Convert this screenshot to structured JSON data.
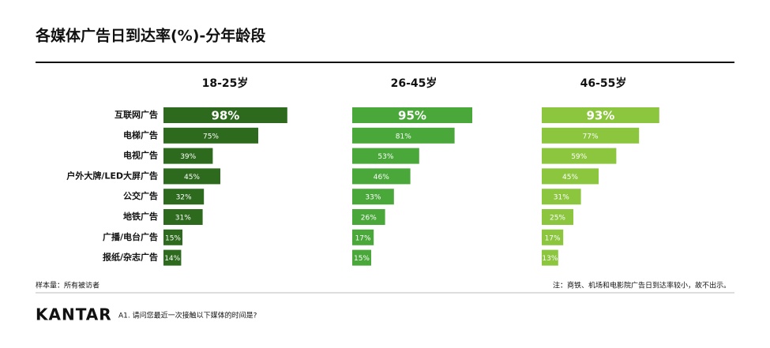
{
  "title": "各媒体广告日到达率(%)-分年龄段",
  "chart_data": [
    {
      "type": "bar",
      "orientation": "horizontal",
      "title": "18-25岁",
      "categories": [
        "互联网广告",
        "电梯广告",
        "电视广告",
        "户外大牌/LED大屏广告",
        "公交广告",
        "地铁广告",
        "广播/电台广告",
        "报纸/杂志广告"
      ],
      "values": [
        98,
        75,
        39,
        45,
        32,
        31,
        15,
        14
      ],
      "value_labels": [
        "98%",
        "75%",
        "39%",
        "45%",
        "32%",
        "31%",
        "15%",
        "14%"
      ],
      "color": "#2d6a1e",
      "xlim": [
        0,
        100
      ]
    },
    {
      "type": "bar",
      "orientation": "horizontal",
      "title": "26-45岁",
      "values": [
        95,
        81,
        53,
        46,
        33,
        26,
        17,
        15
      ],
      "value_labels": [
        "95%",
        "81%",
        "53%",
        "46%",
        "33%",
        "26%",
        "17%",
        "15%"
      ],
      "color": "#4aa83a",
      "xlim": [
        0,
        100
      ]
    },
    {
      "type": "bar",
      "orientation": "horizontal",
      "title": "46-55岁",
      "values": [
        93,
        77,
        59,
        45,
        31,
        25,
        17,
        13
      ],
      "value_labels": [
        "93%",
        "77%",
        "59%",
        "45%",
        "31%",
        "25%",
        "17%",
        "13%"
      ],
      "color": "#8cc63f",
      "xlim": [
        0,
        100
      ]
    }
  ],
  "sample_note": "样本量：所有被访者",
  "footnote": "注：商铁、机场和电影院广告日到达率较小，故不出示。",
  "logo": "KANTAR",
  "question": "A1. 请问您最近一次接触以下媒体的时间是?"
}
